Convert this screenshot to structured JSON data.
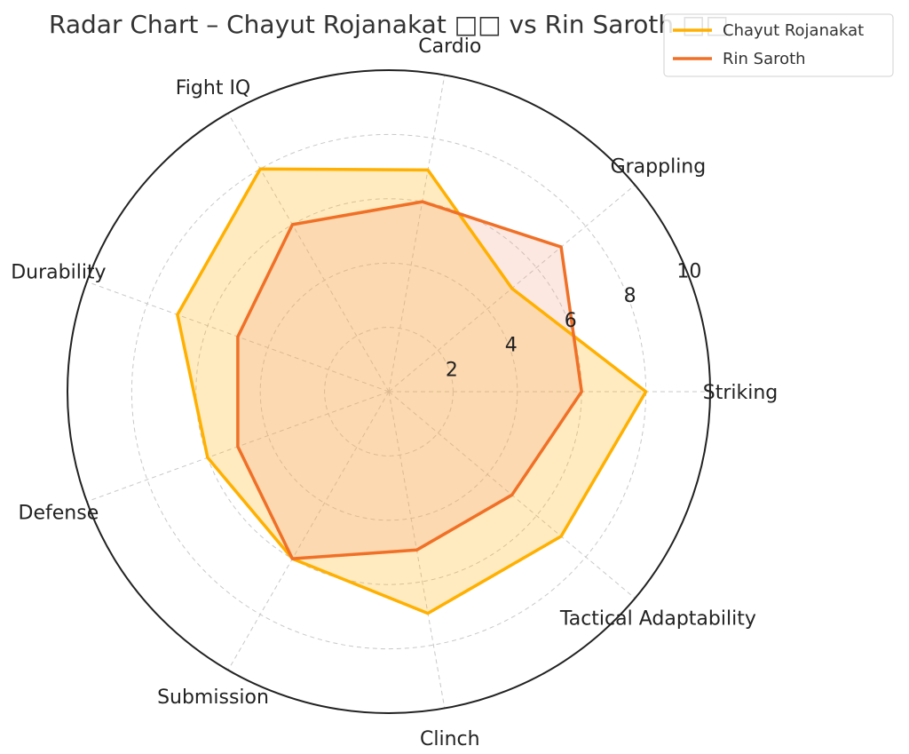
{
  "chart_data": {
    "type": "radar",
    "title": "Radar Chart – Chayut Rojanakat □□ vs Rin Saroth □□",
    "categories": [
      "Striking",
      "Grappling",
      "Cardio",
      "Fight IQ",
      "Durability",
      "Defense",
      "Submission",
      "Clinch",
      "Tactical Adaptability"
    ],
    "rlim": [
      0,
      10
    ],
    "rticks": [
      2,
      4,
      6,
      8,
      10
    ],
    "grid": true,
    "legend_position": "top-right",
    "series": [
      {
        "name": "Chayut Rojanakat",
        "color": "#FFB000",
        "fill": "#FFB000",
        "values": [
          8,
          5,
          7,
          8,
          7,
          6,
          6,
          7,
          7
        ]
      },
      {
        "name": "Rin Saroth",
        "color": "#F07027",
        "fill": "#F4A582",
        "values": [
          6,
          7,
          6,
          6,
          5,
          5,
          6,
          5,
          5
        ]
      }
    ]
  }
}
